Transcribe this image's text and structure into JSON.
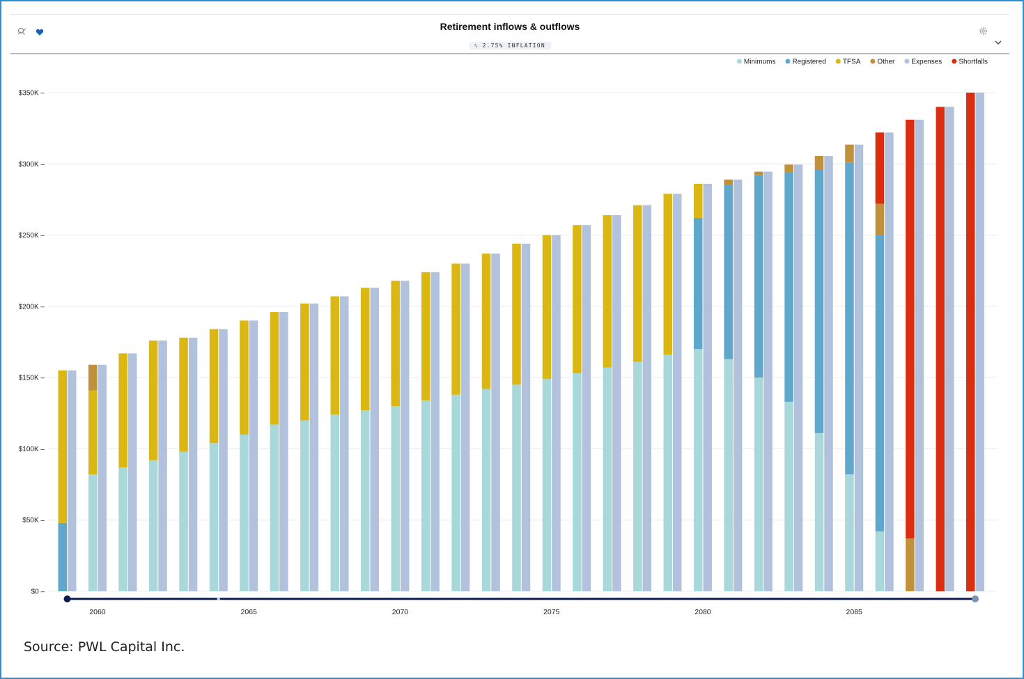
{
  "header": {
    "title": "Retirement inflows & outflows",
    "inflation_badge": "2.75% INFLATION"
  },
  "icons": {
    "left": [
      "chart-zoom-icon",
      "heart-icon"
    ],
    "right": [
      "settings-gear-icon",
      "chevron-down-icon"
    ]
  },
  "colors": {
    "Minimums": "#a8d8d9",
    "Registered": "#5fa8cc",
    "TFSA": "#dbb714",
    "Other": "#c0913a",
    "Expenses": "#b2c2dc",
    "Shortfalls": "#d92e10",
    "slider": "#0d1b4f"
  },
  "chart_data": {
    "type": "bar",
    "title": "Retirement inflows & outflows",
    "legend": [
      "Minimums",
      "Registered",
      "TFSA",
      "Other",
      "Expenses",
      "Shortfalls"
    ],
    "legend_position": "top-right",
    "x": [
      2059,
      2060,
      2061,
      2062,
      2063,
      2064,
      2065,
      2066,
      2067,
      2068,
      2069,
      2070,
      2071,
      2072,
      2073,
      2074,
      2075,
      2076,
      2077,
      2078,
      2079,
      2080,
      2081,
      2082,
      2083,
      2084,
      2085,
      2086,
      2087,
      2088,
      2089
    ],
    "x_tick_labels": [
      "2060",
      "2065",
      "2070",
      "2075",
      "2080",
      "2085"
    ],
    "y_ticks": [
      "$0",
      "$50K",
      "$100K",
      "$150K",
      "$200K",
      "$250K",
      "$300K",
      "$350K"
    ],
    "ylim": [
      0,
      350000
    ],
    "grid": true,
    "stacked_inflows": [
      {
        "name": "Minimums",
        "values": [
          0,
          82000,
          87000,
          92000,
          98000,
          104000,
          110000,
          117000,
          120000,
          124000,
          127000,
          130000,
          134000,
          138000,
          142000,
          145000,
          149000,
          153000,
          157000,
          161000,
          166000,
          170000,
          163000,
          150000,
          133000,
          111000,
          82000,
          42000,
          0,
          0,
          0
        ]
      },
      {
        "name": "Registered",
        "values": [
          48000,
          0,
          0,
          0,
          0,
          0,
          0,
          0,
          0,
          0,
          0,
          0,
          0,
          0,
          0,
          0,
          0,
          0,
          0,
          0,
          0,
          92000,
          122000,
          142000,
          161000,
          185000,
          219000,
          208000,
          0,
          0,
          0
        ]
      },
      {
        "name": "TFSA",
        "values": [
          107000,
          59000,
          80000,
          84000,
          80000,
          80000,
          80000,
          79000,
          82000,
          83000,
          86000,
          88000,
          90000,
          92000,
          95000,
          99000,
          101000,
          104000,
          107000,
          110000,
          113000,
          24000,
          0,
          0,
          0,
          0,
          0,
          0,
          0,
          0,
          0
        ]
      },
      {
        "name": "Other",
        "values": [
          0,
          18000,
          0,
          0,
          0,
          0,
          0,
          0,
          0,
          0,
          0,
          0,
          0,
          0,
          0,
          0,
          0,
          0,
          0,
          0,
          0,
          0,
          4000,
          2500,
          5500,
          9500,
          12500,
          22000,
          37000,
          0,
          0
        ]
      },
      {
        "name": "Shortfalls",
        "values": [
          0,
          0,
          0,
          0,
          0,
          0,
          0,
          0,
          0,
          0,
          0,
          0,
          0,
          0,
          0,
          0,
          0,
          0,
          0,
          0,
          0,
          0,
          0,
          0,
          0,
          0,
          0,
          50000,
          294000,
          340000,
          350000
        ]
      }
    ],
    "expenses": {
      "name": "Expenses",
      "values": [
        155000,
        159000,
        167000,
        176000,
        178000,
        184000,
        190000,
        196000,
        202000,
        207000,
        213000,
        218000,
        224000,
        230000,
        237000,
        244000,
        250000,
        257000,
        264000,
        271000,
        279000,
        286000,
        289000,
        294500,
        299500,
        305500,
        313500,
        322000,
        331000,
        340000,
        350000
      ]
    },
    "range_slider": {
      "start": 2059,
      "end": 2089
    }
  },
  "footer": {
    "source": "Source: PWL Capital Inc."
  }
}
